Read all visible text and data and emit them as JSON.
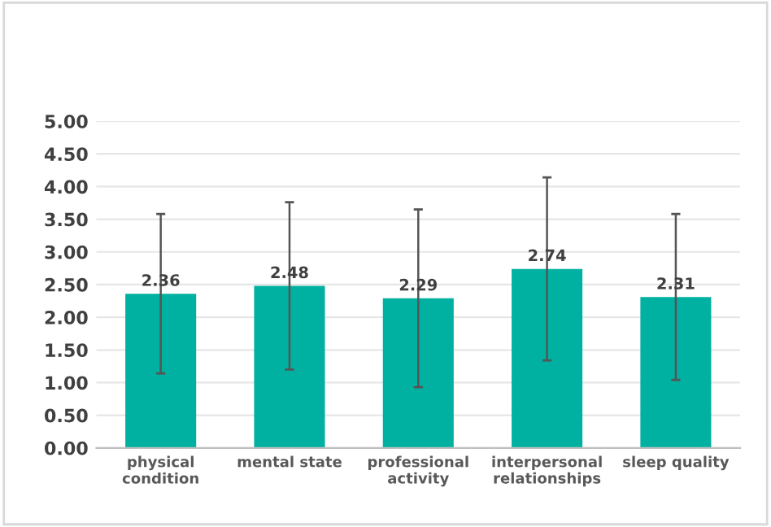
{
  "chart_data": {
    "type": "bar",
    "categories": [
      "physical\ncondition",
      "mental state",
      "professional\nactivity",
      "interpersonal\nrelationships",
      "sleep quality"
    ],
    "values": [
      2.36,
      2.48,
      2.29,
      2.74,
      2.31
    ],
    "errors": [
      1.22,
      1.28,
      1.36,
      1.4,
      1.27
    ],
    "color": "#00b0a0",
    "data_labels": true,
    "ylim": [
      0,
      5
    ],
    "yticks": [
      {
        "value": 0,
        "label": "0.00"
      },
      {
        "value": 0.5,
        "label": "0.50"
      },
      {
        "value": 1,
        "label": "1.00"
      },
      {
        "value": 1.5,
        "label": "1.50"
      },
      {
        "value": 2,
        "label": "2.00"
      },
      {
        "value": 2.5,
        "label": "2.50"
      },
      {
        "value": 3,
        "label": "3.00"
      },
      {
        "value": 3.5,
        "label": "3.50"
      },
      {
        "value": 4,
        "label": "4.00"
      },
      {
        "value": 4.5,
        "label": "4.50"
      },
      {
        "value": 5,
        "label": "5.00"
      }
    ],
    "grid": "y"
  }
}
